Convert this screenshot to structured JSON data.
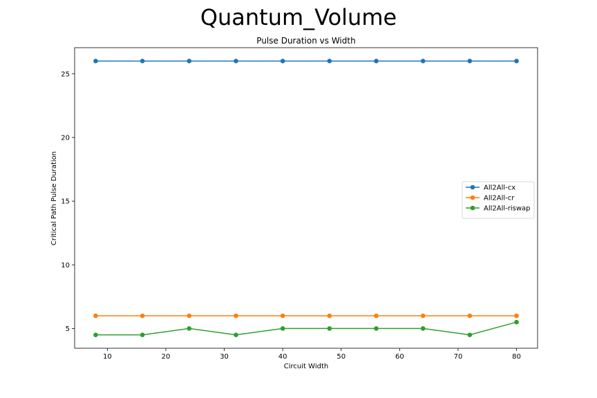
{
  "figure": {
    "suptitle": "Quantum_Volume"
  },
  "colors": {
    "cx": "#1f77b4",
    "cr": "#ff7f0e",
    "riswap": "#2ca02c"
  },
  "chart_data": {
    "type": "line",
    "title": "Pulse Duration vs Width",
    "xlabel": "Circuit Width",
    "ylabel": "Critical Path Pulse Duration",
    "x": [
      8,
      16,
      24,
      32,
      40,
      48,
      56,
      64,
      72,
      80
    ],
    "xlim": [
      4.4,
      83.6
    ],
    "ylim": [
      3.45,
      27.05
    ],
    "xticks": [
      10,
      20,
      30,
      40,
      50,
      60,
      70,
      80
    ],
    "yticks": [
      5,
      10,
      15,
      20,
      25
    ],
    "grid": false,
    "legend_position": "center-right",
    "series": [
      {
        "name": "All2All-cx",
        "color": "#1f77b4",
        "marker": "circle",
        "values": [
          26,
          26,
          26,
          26,
          26,
          26,
          26,
          26,
          26,
          26
        ]
      },
      {
        "name": "All2All-cr",
        "color": "#ff7f0e",
        "marker": "circle",
        "values": [
          6,
          6,
          6,
          6,
          6,
          6,
          6,
          6,
          6,
          6
        ]
      },
      {
        "name": "All2All-riswap",
        "color": "#2ca02c",
        "marker": "circle",
        "values": [
          4.5,
          4.5,
          5,
          4.5,
          5,
          5,
          5,
          5,
          4.5,
          5.5
        ]
      }
    ]
  }
}
